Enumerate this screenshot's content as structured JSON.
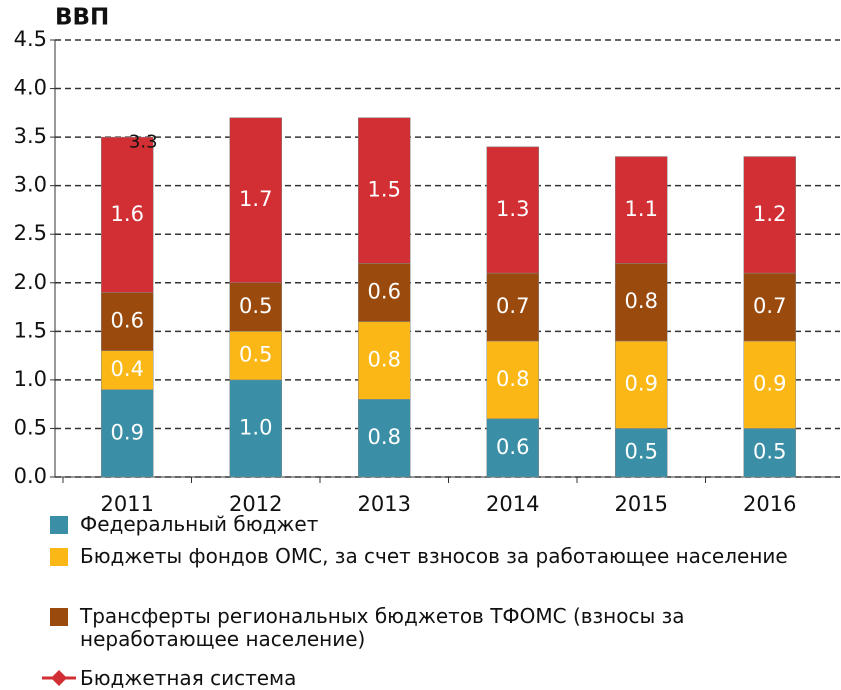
{
  "chart_data": {
    "type": "bar",
    "stacked": true,
    "title": "ВВП",
    "categories": [
      "2011",
      "2012",
      "2013",
      "2014",
      "2015",
      "2016"
    ],
    "series": [
      {
        "name": "Федеральный бюджет",
        "color": "#3a8fa6",
        "values": [
          0.9,
          1.0,
          0.8,
          0.6,
          0.5,
          0.5
        ],
        "value_labels": [
          "0.9",
          "1.0",
          "0.8",
          "0.6",
          "0.5",
          "0.5"
        ]
      },
      {
        "name": "Бюджеты фондов ОМС, за счет взносов за работающее население",
        "color": "#fbb716",
        "values": [
          0.4,
          0.5,
          0.8,
          0.8,
          0.9,
          0.9
        ],
        "value_labels": [
          "0.4",
          "0.5",
          "0.8",
          "0.8",
          "0.9",
          "0.9"
        ]
      },
      {
        "name": "Трансферты  региональных бюджетов ТФОМС (взносы за неработающее население)",
        "color": "#9a4a0c",
        "values": [
          0.6,
          0.5,
          0.6,
          0.7,
          0.8,
          0.7
        ],
        "value_labels": [
          "0.6",
          "0.5",
          "0.6",
          "0.7",
          "0.8",
          "0.7"
        ]
      },
      {
        "color": "#d22f34",
        "values": [
          1.6,
          1.7,
          1.5,
          1.3,
          1.1,
          1.2
        ],
        "value_labels": [
          "1.6",
          "1.7",
          "1.5",
          "1.3",
          "1.1",
          "1.2"
        ]
      },
      {
        "name": "Бюджетная система",
        "type": "line",
        "color": "#d22f34",
        "values": [
          3.3,
          null,
          null,
          null,
          null,
          null
        ],
        "value_labels": [
          "3.3",
          null,
          null,
          null,
          null,
          null
        ]
      }
    ],
    "ylim": [
      0,
      4.5
    ],
    "yticks": [
      {
        "value": 0,
        "label": "0.0"
      },
      0.5,
      {
        "value": 1,
        "label": "1.0"
      },
      1.5,
      {
        "value": 2,
        "label": "2.0"
      },
      2.5,
      {
        "value": 3,
        "label": "3.0"
      },
      3.5,
      {
        "value": 4,
        "label": "4.0"
      },
      4.5
    ],
    "grid": true
  }
}
